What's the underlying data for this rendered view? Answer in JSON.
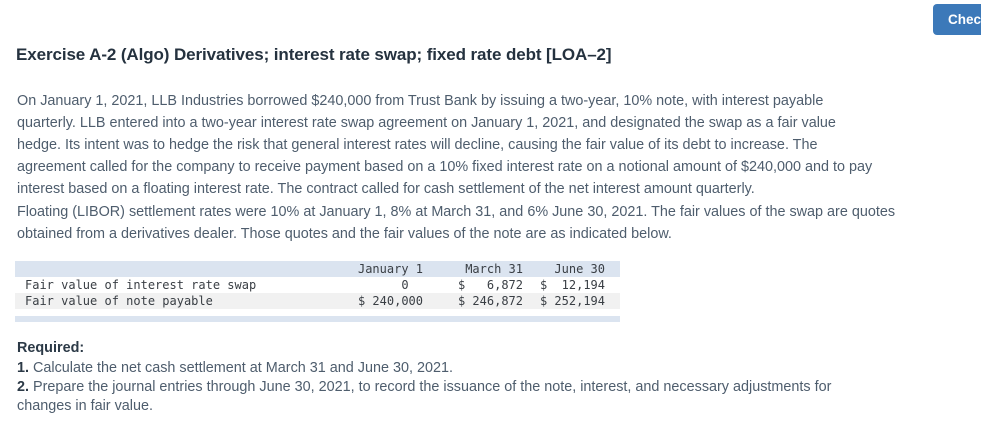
{
  "header": {
    "check_button_label": "Chec"
  },
  "exercise": {
    "title": "Exercise A-2 (Algo) Derivatives; interest rate swap; fixed rate debt [LOA–2]",
    "paragraph1_lines": [
      "On January 1, 2021, LLB Industries borrowed $240,000 from Trust Bank by issuing a two-year, 10% note, with interest payable",
      "quarterly. LLB entered into a two-year interest rate swap agreement on January 1, 2021, and designated the swap as a fair value",
      "hedge. Its intent was to hedge the risk that general interest rates will decline, causing the fair value of its debt to increase. The",
      "agreement called for the company to receive payment based on a 10% fixed interest rate on a notional amount of $240,000 and to pay",
      "interest based on a floating interest rate. The contract called for cash settlement of the net interest amount quarterly."
    ],
    "paragraph2_lines": [
      "Floating (LIBOR) settlement rates were 10% at January 1, 8% at March 31, and 6% June 30, 2021. The fair values of the swap are quotes",
      "obtained from a derivatives dealer. Those quotes and the fair values of the note are as indicated below."
    ]
  },
  "table": {
    "columns": [
      "January 1",
      "March 31",
      "June 30"
    ],
    "rows": [
      {
        "label": "Fair value of interest rate swap",
        "jan": "0  ",
        "mar": "$   6,872",
        "jun": "$  12,194"
      },
      {
        "label": "Fair value of note payable",
        "jan": "$ 240,000",
        "mar": "$ 246,872",
        "jun": "$ 252,194"
      }
    ]
  },
  "required": {
    "heading": "Required:",
    "items": [
      {
        "num": "1.",
        "lines": [
          "Calculate the net cash settlement at March 31 and June 30, 2021."
        ]
      },
      {
        "num": "2.",
        "lines": [
          "Prepare the journal entries through June 30, 2021, to record the issuance of the note, interest, and necessary adjustments for",
          "changes in fair value."
        ]
      }
    ]
  },
  "colors": {
    "accent_blue": "#3c79b9",
    "table_header_bg": "#dbe4f0",
    "table_stripe_bg": "#f1f1f1"
  }
}
